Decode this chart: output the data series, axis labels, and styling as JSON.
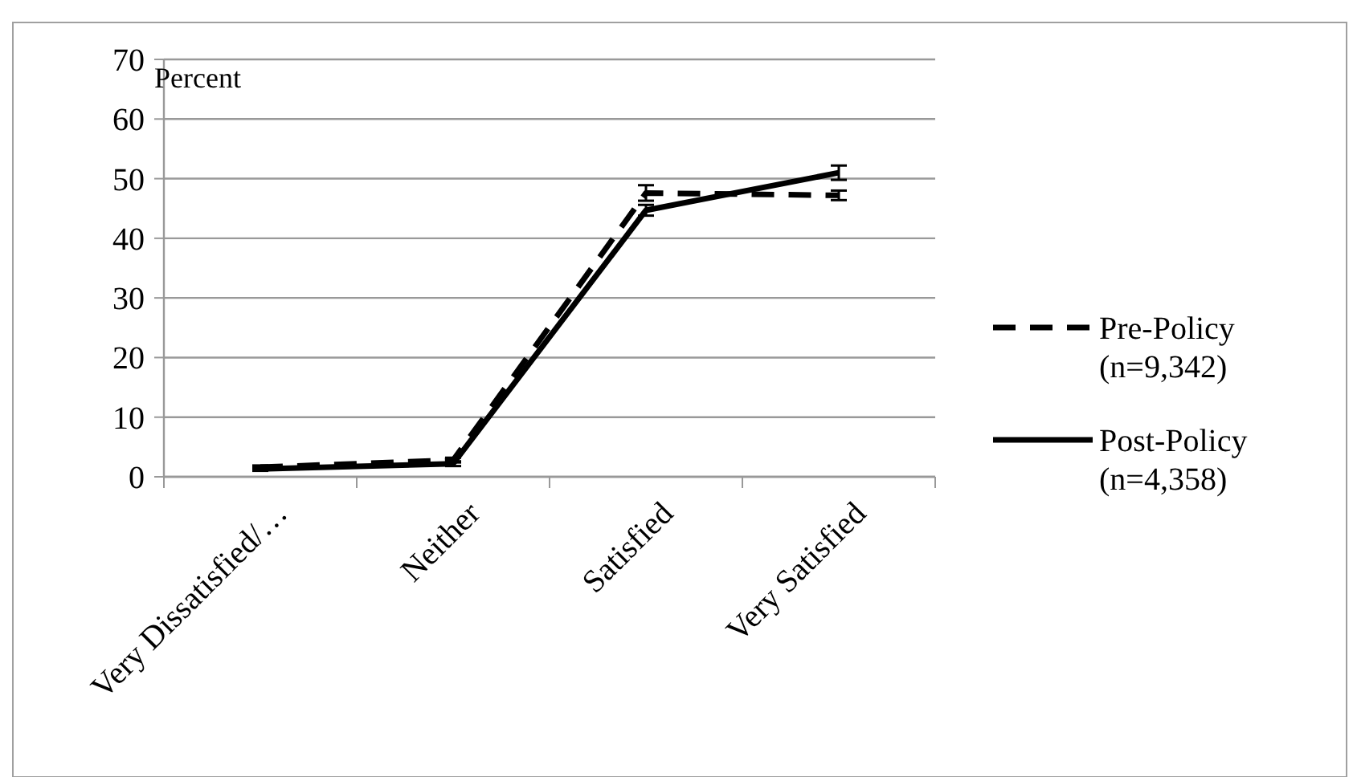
{
  "chart_data": {
    "type": "line",
    "ylabel": "Percent",
    "categories": [
      "Very Dissatisfied/…",
      "Neither",
      "Satisfied",
      "Very Satisfied"
    ],
    "ylim": [
      0,
      70
    ],
    "yticks": [
      0,
      10,
      20,
      30,
      40,
      50,
      60,
      70
    ],
    "grid": "y",
    "legend": "right",
    "marker": "none",
    "series": [
      {
        "name": "Pre-Policy (n=9,342)",
        "color": "#000000",
        "line_style": "dashed",
        "values": [
          1.6,
          2.8,
          47.6,
          47.2
        ],
        "errors": [
          0.3,
          0.4,
          1.3,
          0.8
        ]
      },
      {
        "name": "Post-Policy (n=4,358)",
        "color": "#000000",
        "line_style": "solid",
        "values": [
          1.3,
          2.2,
          44.7,
          51
        ],
        "errors": [
          0.3,
          0.4,
          0.9,
          1.2
        ]
      }
    ]
  }
}
